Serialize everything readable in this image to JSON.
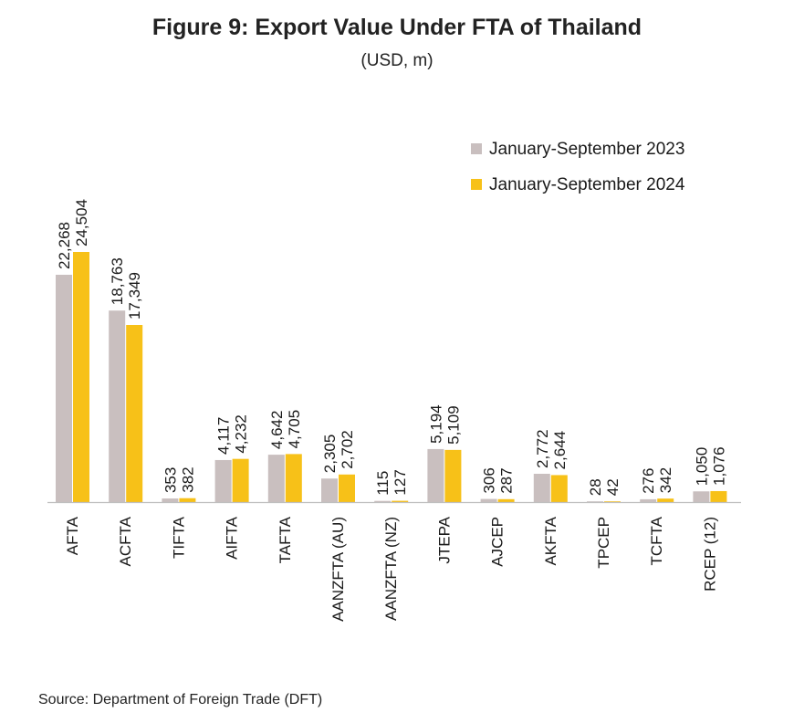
{
  "title": "Figure 9: Export Value Under FTA of Thailand",
  "subtitle": "(USD, m)",
  "source": "Source: Department of Foreign Trade (DFT)",
  "chart_data": {
    "type": "bar",
    "categories": [
      "AFTA",
      "ACFTA",
      "TIFTA",
      "AIFTA",
      "TAFTA",
      "AANZFTA (AU)",
      "AANZFTA (NZ)",
      "JTEPA",
      "AJCEP",
      "AKFTA",
      "TPCEP",
      "TCFTA",
      "RCEP (12)"
    ],
    "series": [
      {
        "name": "January-September 2023",
        "color": "#c9bfbf",
        "values": [
          22268,
          18763,
          353,
          4117,
          4642,
          2305,
          115,
          5194,
          306,
          2772,
          28,
          276,
          1050
        ],
        "labels": [
          "22,268",
          "18,763",
          "353",
          "4,117",
          "4,642",
          "2,305",
          "115",
          "5,194",
          "306",
          "2,772",
          "28",
          "276",
          "1,050"
        ]
      },
      {
        "name": "January-September 2024",
        "color": "#f7c118",
        "values": [
          24504,
          17349,
          382,
          4232,
          4705,
          2702,
          127,
          5109,
          287,
          2644,
          42,
          342,
          1076
        ],
        "labels": [
          "24,504",
          "17,349",
          "382",
          "4,232",
          "4,705",
          "2,702",
          "127",
          "5,109",
          "287",
          "2,644",
          "42",
          "342",
          "1,076"
        ]
      }
    ],
    "ylim": [
      0,
      25000
    ],
    "legend_position": "top-right",
    "grid": false
  }
}
